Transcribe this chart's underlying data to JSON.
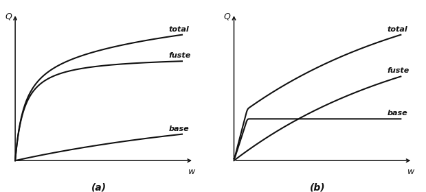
{
  "bg_color": "#ffffff",
  "line_color": "#111111",
  "font_size": 8,
  "label_font_size": 9,
  "line_width": 1.5,
  "subplot_a": {
    "label": "(a)",
    "fuste_asymptote": 0.6,
    "fuste_k": 18.0,
    "base_asymptote": 0.3,
    "base_k": 0.7,
    "labels": [
      "total",
      "fuste",
      "base"
    ]
  },
  "subplot_b": {
    "label": "(b)",
    "fuste_plateau": 0.2,
    "fuste_rise": 0.08,
    "base_asymptote": 0.68,
    "base_k": 0.9,
    "labels": [
      "total",
      "base",
      "fuste"
    ]
  }
}
